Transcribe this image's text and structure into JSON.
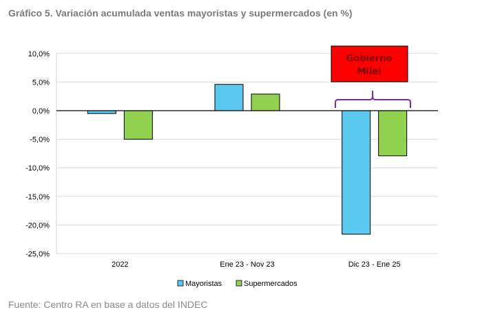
{
  "title": "Gráfico 5. Variación acumulada ventas mayoristas y supermercados (en %)",
  "source": "Fuente: Centro RA en base a datos del INDEC",
  "chart_data": {
    "type": "bar",
    "categories": [
      "2022",
      "Ene 23 - Nov 23",
      "Dic 23 - Ene 25"
    ],
    "series": [
      {
        "name": "Mayoristas",
        "color": "#5bc8f0",
        "values": [
          -0.5,
          4.6,
          -21.6
        ]
      },
      {
        "name": "Supermercados",
        "color": "#92d050",
        "values": [
          -5.0,
          2.9,
          -7.9
        ]
      }
    ],
    "ylim": [
      -25,
      10
    ],
    "yticks": [
      10,
      5,
      0,
      -5,
      -10,
      -15,
      -20,
      -25
    ],
    "ytick_labels": [
      "10,0%",
      "5,0%",
      "0,0%",
      "-5,0%",
      "-10,0%",
      "-15,0%",
      "-20,0%",
      "-25,0%"
    ],
    "grid": true,
    "legend": "bottom",
    "annotation": {
      "text_lines": [
        "Gobierno",
        "Milei"
      ],
      "box_color": "#ff0000",
      "brace_color": "#7030a0",
      "category": "Dic 23 - Ene 25"
    }
  }
}
